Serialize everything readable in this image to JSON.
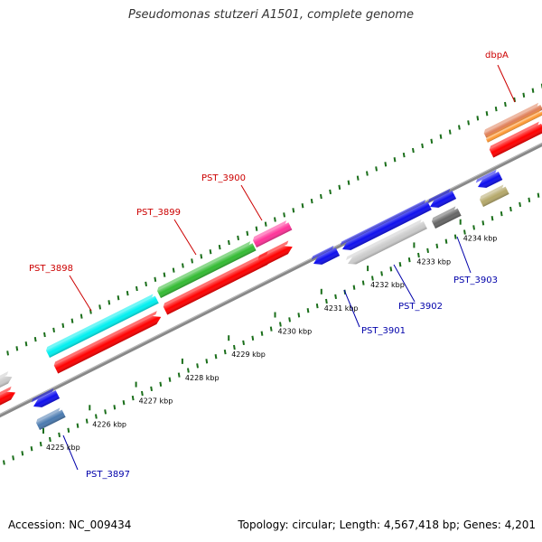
{
  "title": "Pseudomonas stutzeri A1501, complete genome",
  "accession_label": "Accession: NC_009434",
  "stats_label": "Topology: circular; Length: 4,567,418 bp; Genes: 4,201",
  "colors": {
    "upper_label": "#cc0000",
    "lower_label": "#0000aa",
    "tick": "#1a6e1a",
    "backbone": "#888888",
    "red": "#ff0000",
    "blue": "#1010ee",
    "cyan": "#00f0f0",
    "green": "#33bb33",
    "magenta": "#ff3399",
    "light_gray": "#cccccc",
    "dark_gray": "#666666",
    "steel_blue": "#4a7ab0",
    "khaki": "#b5a86a"
  },
  "kbp_labels": [
    "4225 kbp",
    "4226 kbp",
    "4227 kbp",
    "4228 kbp",
    "4229 kbp",
    "4230 kbp",
    "4231 kbp",
    "4232 kbp",
    "4233 kbp",
    "4234 kbp"
  ],
  "gene_labels": [
    {
      "name": "PST_3897",
      "strand": "reverse"
    },
    {
      "name": "PST_3898",
      "strand": "forward"
    },
    {
      "name": "PST_3899",
      "strand": "forward"
    },
    {
      "name": "PST_3900",
      "strand": "forward"
    },
    {
      "name": "PST_3901",
      "strand": "reverse"
    },
    {
      "name": "PST_3902",
      "strand": "reverse"
    },
    {
      "name": "PST_3903",
      "strand": "reverse"
    },
    {
      "name": "dbpA",
      "strand": "forward"
    }
  ]
}
